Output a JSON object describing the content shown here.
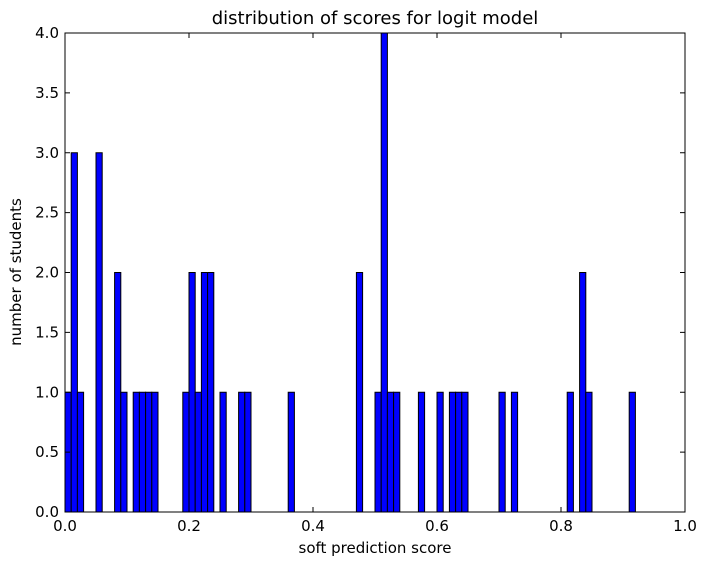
{
  "chart_data": {
    "type": "bar",
    "title": "distribution of scores for logit model",
    "xlabel": "soft prediction score",
    "ylabel": "number of students",
    "xlim": [
      0.0,
      1.0
    ],
    "ylim": [
      0.0,
      4.0
    ],
    "bin_width": 0.01,
    "xticks": [
      "0.0",
      "0.2",
      "0.4",
      "0.6",
      "0.8",
      "1.0"
    ],
    "yticks": [
      "0.0",
      "0.5",
      "1.0",
      "1.5",
      "2.0",
      "2.5",
      "3.0",
      "3.5",
      "4.0"
    ],
    "bar_color": "#0000ff",
    "bars": [
      {
        "x": 0.0,
        "count": 1
      },
      {
        "x": 0.01,
        "count": 3
      },
      {
        "x": 0.02,
        "count": 1
      },
      {
        "x": 0.05,
        "count": 3
      },
      {
        "x": 0.08,
        "count": 2
      },
      {
        "x": 0.09,
        "count": 1
      },
      {
        "x": 0.11,
        "count": 1
      },
      {
        "x": 0.12,
        "count": 1
      },
      {
        "x": 0.13,
        "count": 1
      },
      {
        "x": 0.14,
        "count": 1
      },
      {
        "x": 0.19,
        "count": 1
      },
      {
        "x": 0.2,
        "count": 2
      },
      {
        "x": 0.21,
        "count": 1
      },
      {
        "x": 0.22,
        "count": 2
      },
      {
        "x": 0.23,
        "count": 2
      },
      {
        "x": 0.25,
        "count": 1
      },
      {
        "x": 0.28,
        "count": 1
      },
      {
        "x": 0.29,
        "count": 1
      },
      {
        "x": 0.36,
        "count": 1
      },
      {
        "x": 0.47,
        "count": 2
      },
      {
        "x": 0.5,
        "count": 1
      },
      {
        "x": 0.51,
        "count": 4
      },
      {
        "x": 0.52,
        "count": 1
      },
      {
        "x": 0.53,
        "count": 1
      },
      {
        "x": 0.57,
        "count": 1
      },
      {
        "x": 0.6,
        "count": 1
      },
      {
        "x": 0.62,
        "count": 1
      },
      {
        "x": 0.63,
        "count": 1
      },
      {
        "x": 0.64,
        "count": 1
      },
      {
        "x": 0.7,
        "count": 1
      },
      {
        "x": 0.72,
        "count": 1
      },
      {
        "x": 0.81,
        "count": 1
      },
      {
        "x": 0.83,
        "count": 2
      },
      {
        "x": 0.84,
        "count": 1
      },
      {
        "x": 0.91,
        "count": 1
      }
    ]
  }
}
